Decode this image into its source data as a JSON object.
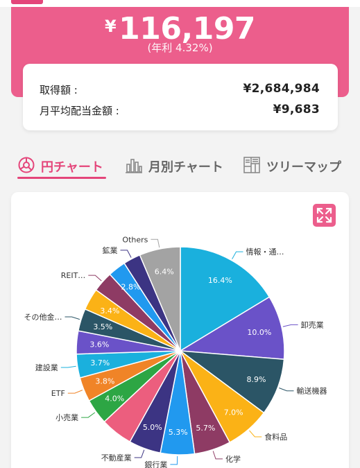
{
  "summary": {
    "currency_symbol": "¥",
    "total_amount": "116,197",
    "annual_rate": "(年利 4.32%)"
  },
  "details": {
    "acquisition_label": "取得額 :",
    "acquisition_value": "¥2,684,984",
    "monthly_avg_label": "月平均配当金額 :",
    "monthly_avg_value": "¥9,683"
  },
  "tabs": [
    {
      "label": "円チャート",
      "icon": "pie-icon",
      "active": true
    },
    {
      "label": "月別チャート",
      "icon": "bar-chart-icon",
      "active": false
    },
    {
      "label": "ツリーマップ",
      "icon": "treemap-icon",
      "active": false
    }
  ],
  "colors": {
    "accent": "#e4457a",
    "hero": "#ec5e8c"
  },
  "chart_data": {
    "type": "pie",
    "slices": [
      {
        "label": "情報・通…",
        "value": 16.4,
        "pct_label": "16.4%",
        "color": "#1ab0dd"
      },
      {
        "label": "卸売業",
        "value": 10.0,
        "pct_label": "10.0%",
        "color": "#6a52c8"
      },
      {
        "label": "輸送機器",
        "value": 8.9,
        "pct_label": "8.9%",
        "color": "#2b5566"
      },
      {
        "label": "食料品",
        "value": 7.0,
        "pct_label": "7.0%",
        "color": "#fbb216"
      },
      {
        "label": "化学",
        "value": 5.7,
        "pct_label": "5.7%",
        "color": "#8e3b64"
      },
      {
        "label": "銀行業",
        "value": 5.3,
        "pct_label": "5.3%",
        "color": "#2199ef"
      },
      {
        "label": "不動産業",
        "value": 5.0,
        "pct_label": "5.0%",
        "color": "#3c3483"
      },
      {
        "label": "",
        "value": 5.0,
        "pct_label": "",
        "color": "#ec5e7e"
      },
      {
        "label": "小売業",
        "value": 4.0,
        "pct_label": "4.0%",
        "color": "#2da644"
      },
      {
        "label": "ETF",
        "value": 3.8,
        "pct_label": "3.8%",
        "color": "#f08427"
      },
      {
        "label": "建設業",
        "value": 3.7,
        "pct_label": "3.7%",
        "color": "#1ab0dd"
      },
      {
        "label": "",
        "value": 3.6,
        "pct_label": "3.6%",
        "color": "#6a52c8"
      },
      {
        "label": "その他金…",
        "value": 3.5,
        "pct_label": "3.5%",
        "color": "#2b5566"
      },
      {
        "label": "",
        "value": 3.4,
        "pct_label": "3.4%",
        "color": "#fbb216"
      },
      {
        "label": "REIT…",
        "value": 3.2,
        "pct_label": "",
        "color": "#8e3b64"
      },
      {
        "label": "",
        "value": 2.8,
        "pct_label": "2.8%",
        "color": "#2199ef"
      },
      {
        "label": "鉱業",
        "value": 2.7,
        "pct_label": "",
        "color": "#3c3483"
      },
      {
        "label": "Others",
        "value": 6.4,
        "pct_label": "6.4%",
        "color": "#a3a3a3"
      }
    ]
  }
}
